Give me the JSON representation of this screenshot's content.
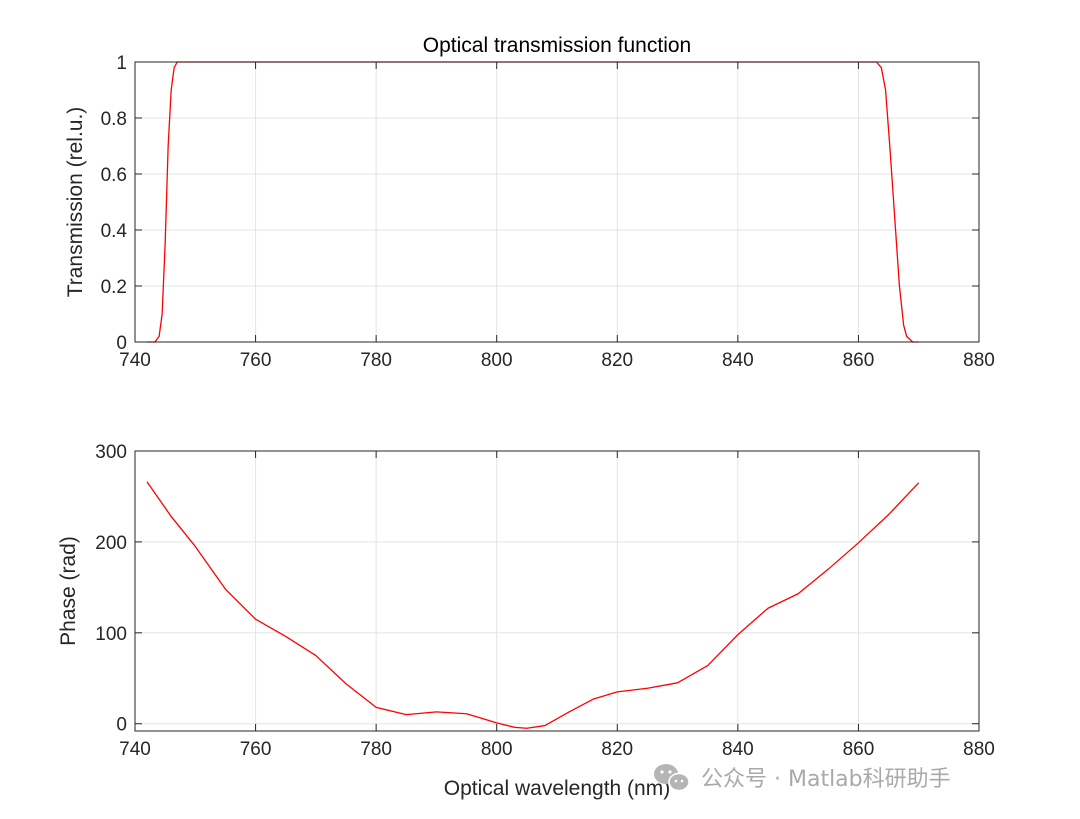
{
  "colors": {
    "series": "#ff0000",
    "axis": "#262626",
    "grid": "#e4e4e4",
    "watermark": "#a9a9a9"
  },
  "watermark": {
    "icon": "wechat-icon",
    "text": "公众号 · Matlab科研助手"
  },
  "chart_data": [
    {
      "type": "line",
      "title": "Optical transmission function",
      "xlabel": "",
      "ylabel": "Transmission (rel.u.)",
      "xlim": [
        740,
        880
      ],
      "ylim": [
        0,
        1
      ],
      "xticks": [
        740,
        760,
        780,
        800,
        820,
        840,
        860,
        880
      ],
      "xtick_labels": [
        "740",
        "760",
        "780",
        "800",
        "820",
        "840",
        "860",
        "880"
      ],
      "yticks": [
        0,
        0.2,
        0.4,
        0.6,
        0.8,
        1
      ],
      "ytick_labels": [
        "0",
        "0.2",
        "0.4",
        "0.6",
        "0.8",
        "1"
      ],
      "grid": true,
      "series": [
        {
          "color": "#ff0000",
          "x": [
            742.0,
            743.3,
            744.0,
            744.5,
            745.0,
            745.5,
            746.0,
            746.5,
            747.0,
            748.0,
            800.0,
            862.0,
            863.0,
            863.8,
            864.5,
            865.2,
            866.0,
            866.8,
            867.5,
            868.0,
            869.0,
            870.0
          ],
          "y": [
            0.0,
            0.0,
            0.02,
            0.1,
            0.35,
            0.7,
            0.9,
            0.98,
            1.0,
            1.0,
            1.0,
            1.0,
            1.0,
            0.98,
            0.9,
            0.7,
            0.45,
            0.2,
            0.06,
            0.02,
            0.0,
            0.0
          ]
        }
      ]
    },
    {
      "type": "line",
      "title": "",
      "xlabel": "Optical wavelength (nm)",
      "ylabel": "Phase (rad)",
      "xlim": [
        740,
        880
      ],
      "ylim": [
        -8,
        300
      ],
      "xticks": [
        740,
        760,
        780,
        800,
        820,
        840,
        860,
        880
      ],
      "xtick_labels": [
        "740",
        "760",
        "780",
        "800",
        "820",
        "840",
        "860",
        "880"
      ],
      "yticks": [
        0,
        100,
        200,
        300
      ],
      "ytick_labels": [
        "0",
        "100",
        "200",
        "300"
      ],
      "grid": true,
      "series": [
        {
          "color": "#ff0000",
          "x": [
            742,
            746,
            750,
            755,
            760,
            765,
            770,
            775,
            780,
            785,
            790,
            795,
            800,
            803,
            805,
            808,
            812,
            816,
            820,
            825,
            830,
            835,
            840,
            845,
            850,
            855,
            860,
            865,
            870
          ],
          "y": [
            266,
            228,
            195,
            148,
            115,
            96,
            75,
            44,
            18,
            10,
            13,
            11,
            1,
            -4,
            -5,
            -2,
            13,
            27,
            35,
            39,
            45,
            64,
            98,
            127,
            143,
            170,
            199,
            230,
            265
          ]
        }
      ]
    }
  ]
}
